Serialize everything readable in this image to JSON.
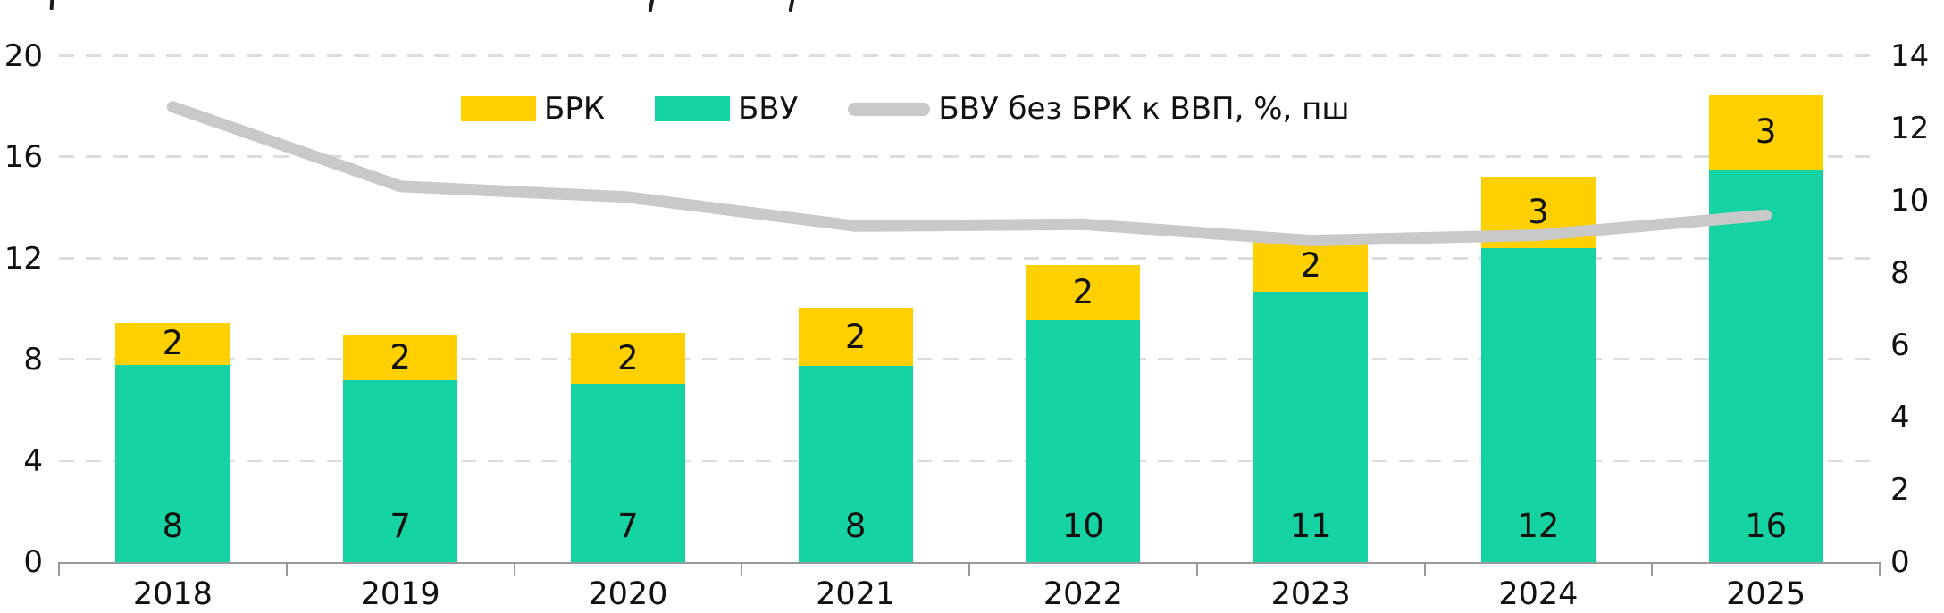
{
  "chart_data": {
    "type": "bar",
    "subtype": "stacked-bars-with-line-overlay",
    "categories": [
      "2018",
      "2019",
      "2020",
      "2021",
      "2022",
      "2023",
      "2024",
      "2025"
    ],
    "series": [
      {
        "name": "БВУ",
        "role": "bar-bottom-segment",
        "color": "#15D3A2",
        "labels": [
          "8",
          "7",
          "7",
          "8",
          "10",
          "11",
          "12",
          "16"
        ],
        "values_plot": [
          7.8,
          7.2,
          7.05,
          7.75,
          9.55,
          10.7,
          12.4,
          15.5
        ]
      },
      {
        "name": "БРК",
        "role": "bar-top-segment",
        "color": "#FFD000",
        "labels": [
          "2",
          "2",
          "2",
          "2",
          "2",
          "2",
          "3",
          "3"
        ],
        "values_plot": [
          1.65,
          1.75,
          2.0,
          2.3,
          2.2,
          2.0,
          2.85,
          3.0
        ]
      }
    ],
    "line": {
      "name": "БВУ без БРК к ВВП, %, пш",
      "color": "#C9C9C9",
      "axis": "right",
      "values": [
        12.6,
        10.4,
        10.1,
        9.3,
        9.35,
        8.9,
        9.05,
        9.6
      ]
    },
    "left_axis": {
      "range": [
        0,
        20
      ],
      "ticks": [
        0,
        4,
        8,
        12,
        16,
        20
      ]
    },
    "right_axis": {
      "range": [
        0,
        14
      ],
      "ticks": [
        0,
        2,
        4,
        6,
        8,
        10,
        12,
        14
      ]
    },
    "grid": {
      "horizontal": true,
      "style": "dashed",
      "color": "#DCDCDC"
    },
    "legend_position": "top-center",
    "axis_color": "#9A9A9A",
    "label_color": "#111111"
  }
}
